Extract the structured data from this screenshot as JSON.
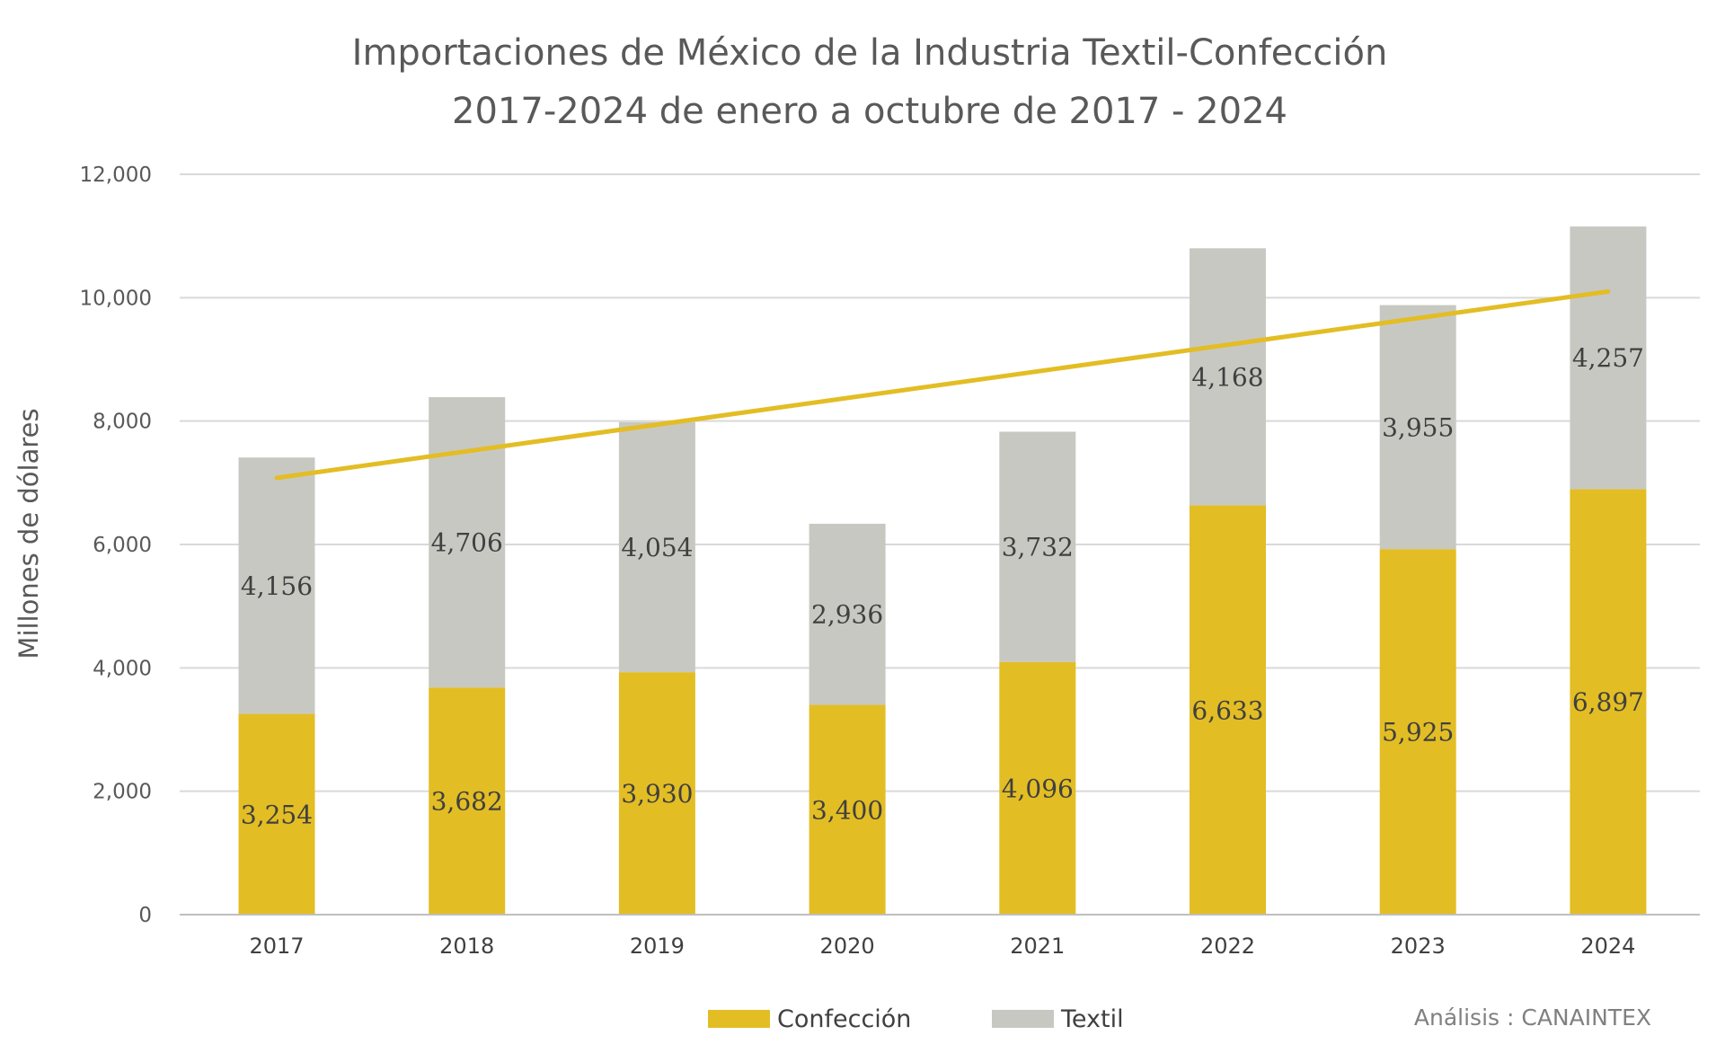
{
  "chart_data": {
    "type": "bar",
    "stacked": true,
    "title": "Importaciones de México de la Industria Textil-Confección",
    "subtitle": "2017-2024 de enero a octubre de 2017 - 2024",
    "ylabel": "Millones de dólares",
    "xlabel": "",
    "ylim": [
      0,
      12000
    ],
    "yticks": [
      0,
      2000,
      4000,
      6000,
      8000,
      10000,
      12000
    ],
    "ytick_labels": [
      "0",
      "2,000",
      "4,000",
      "6,000",
      "8,000",
      "10,000",
      "12,000"
    ],
    "grid": true,
    "categories": [
      "2017",
      "2018",
      "2019",
      "2020",
      "2021",
      "2022",
      "2023",
      "2024"
    ],
    "series": [
      {
        "name": "Confección",
        "color": "#e3bd24",
        "values": [
          3254,
          3682,
          3930,
          3400,
          4096,
          6633,
          5925,
          6897
        ],
        "labels": [
          "3,254",
          "3,682",
          "3,930",
          "3,400",
          "4,096",
          "6,633",
          "5,925",
          "6,897"
        ]
      },
      {
        "name": "Textil",
        "color": "#c8c8c3",
        "values": [
          4156,
          4706,
          4054,
          2936,
          3732,
          4168,
          3955,
          4257
        ],
        "labels": [
          "4,156",
          "4,706",
          "4,054",
          "2,936",
          "3,732",
          "4,168",
          "3,955",
          "4,257"
        ]
      }
    ],
    "trendline": {
      "color": "#e3bd24",
      "start": 7080,
      "end": 10100
    },
    "legend_position": "bottom",
    "source": "Análisis : CANAINTEX"
  }
}
